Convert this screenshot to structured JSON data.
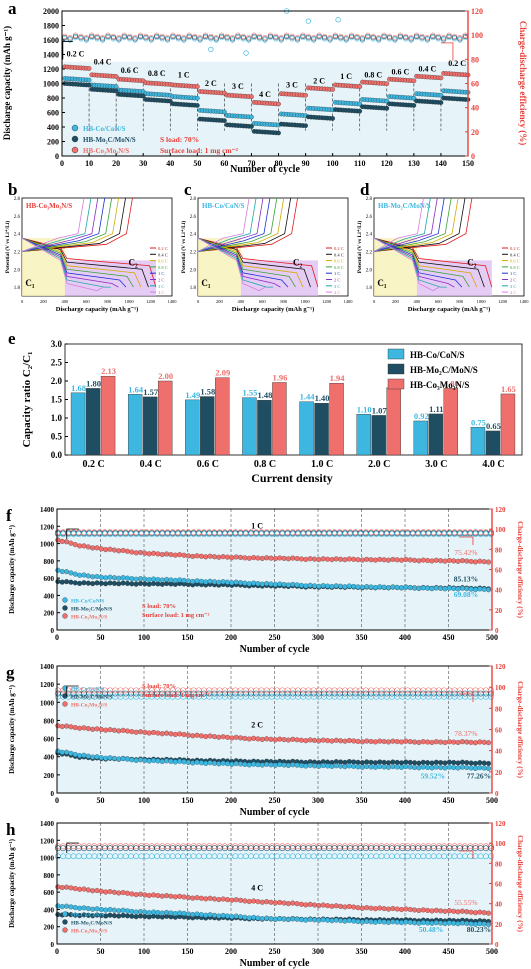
{
  "colors": {
    "co": "#3db7e0",
    "mo": "#1f4e63",
    "co3": "#ef6f6c",
    "right_axis": "#e8403a",
    "bg_light": "#e3f3f8"
  },
  "panel_a": {
    "label": "a",
    "xlabel": "Number of cycle",
    "ylabel_left": "Discharge capacity (mAh g⁻¹)",
    "ylabel_right": "Charge-discharge efficiency (%)",
    "legend": [
      "HB-Co/CoN/S",
      "HB-Mo₂C/MoN/S",
      "HB-Co₃Mo₃N/S"
    ],
    "notes": [
      "S load: 70%",
      "Surface load: 1 mg cm⁻²"
    ],
    "rates": [
      "0.2 C",
      "0.4 C",
      "0.6 C",
      "0.8 C",
      "1 C",
      "2 C",
      "3 C",
      "4 C",
      "3 C",
      "2 C",
      "1 C",
      "0.8 C",
      "0.6 C",
      "0.4 C",
      "0.2 C"
    ],
    "xticks": [
      0,
      10,
      20,
      30,
      40,
      50,
      60,
      70,
      80,
      90,
      100,
      110,
      120,
      130,
      140,
      150
    ],
    "yticks_left": [
      0,
      200,
      400,
      600,
      800,
      1000,
      1200,
      1400,
      1600,
      1800,
      2000
    ],
    "yticks_right": [
      0,
      20,
      40,
      60,
      80,
      100,
      120
    ]
  },
  "panels_bcd": [
    {
      "label": "b",
      "title": "HB-Co₃Mo₃N/S"
    },
    {
      "label": "c",
      "title": "HB-Co/CoN/S"
    },
    {
      "label": "d",
      "title": "HB-Mo₂C/MoN/S"
    }
  ],
  "bcd_common": {
    "xlabel": "Discharge capacity (mAh g⁻¹)",
    "ylabel": "Potential (V vs Li⁺/Li)",
    "c1": "C₁",
    "c2": "C₂",
    "rates": [
      "0.2 C",
      "0.4 C",
      "0.6 C",
      "0.8 C",
      "1 C",
      "2 C",
      "3 C",
      "4 C"
    ],
    "xticks": [
      0,
      200,
      400,
      600,
      800,
      1000,
      1200,
      1400
    ],
    "yticks": [
      1.8,
      2.0,
      2.2,
      2.4,
      2.6,
      2.8
    ]
  },
  "panel_e": {
    "label": "e",
    "xlabel": "Current density",
    "ylabel": "Capacity ratio C₂/C₁",
    "yticks": [
      0.0,
      0.5,
      1.0,
      1.5,
      2.0,
      2.5,
      3.0
    ]
  },
  "panels_fgh": [
    {
      "label": "f",
      "rate": "1 C",
      "pct": [
        "75.42%",
        "85.13%",
        "69.08%"
      ],
      "legend_pos": "bottom-left",
      "notes_pos": "bottom-mid"
    },
    {
      "label": "g",
      "rate": "2 C",
      "pct": [
        "78.37%",
        "77.26%",
        "59.52%"
      ],
      "legend_pos": "top-left",
      "notes_pos": "top-mid"
    },
    {
      "label": "h",
      "rate": "4 C",
      "pct": [
        "55.55%",
        "80.23%",
        "50.48%"
      ],
      "legend_pos": "bottom-left",
      "notes_pos": "none"
    }
  ],
  "fgh_common": {
    "xlabel": "Number of cycle",
    "ylabel_left": "Discharge capacity (mAh g⁻¹)",
    "ylabel_right": "Charge-discharge efficiency (%)",
    "xticks": [
      0,
      50,
      100,
      150,
      200,
      250,
      300,
      350,
      400,
      450,
      500
    ],
    "yticks_left": [
      0,
      200,
      400,
      600,
      800,
      1000,
      1200,
      1400
    ],
    "yticks_right": [
      0,
      20,
      40,
      60,
      80,
      100,
      120
    ]
  },
  "chart_data": [
    {
      "type": "scatter",
      "title": "",
      "xlabel": "Number of cycle",
      "ylabel": "Discharge capacity (mAh g⁻¹)",
      "ylabel_right": "Charge-discharge efficiency (%)",
      "xlim": [
        0,
        150
      ],
      "ylim": [
        0,
        2000
      ],
      "ylim_right": [
        0,
        120
      ],
      "rate_steps": [
        "0.2 C",
        "0.4 C",
        "0.6 C",
        "0.8 C",
        "1 C",
        "2 C",
        "3 C",
        "4 C",
        "3 C",
        "2 C",
        "1 C",
        "0.8 C",
        "0.6 C",
        "0.4 C",
        "0.2 C"
      ],
      "series": [
        {
          "name": "HB-Co₃Mo₃N/S",
          "x": [
            5,
            15,
            25,
            35,
            45,
            55,
            65,
            75,
            85,
            95,
            105,
            115,
            125,
            135,
            145
          ],
          "values": [
            1210,
            1100,
            1040,
            990,
            960,
            870,
            820,
            720,
            840,
            920,
            960,
            1000,
            1040,
            1080,
            1120
          ],
          "efficiency": 98
        },
        {
          "name": "HB-Co/CoN/S",
          "x": [
            5,
            15,
            25,
            35,
            45,
            55,
            65,
            75,
            85,
            95,
            105,
            115,
            125,
            135,
            145
          ],
          "values": [
            1050,
            960,
            890,
            840,
            800,
            610,
            540,
            430,
            560,
            640,
            720,
            760,
            800,
            840,
            880
          ],
          "efficiency": 96
        },
        {
          "name": "HB-Mo₂C/MoN/S",
          "x": [
            5,
            15,
            25,
            35,
            45,
            55,
            65,
            75,
            85,
            95,
            105,
            115,
            125,
            135,
            145
          ],
          "values": [
            980,
            900,
            830,
            760,
            700,
            490,
            410,
            320,
            420,
            520,
            620,
            660,
            700,
            740,
            780
          ],
          "efficiency": 97
        }
      ]
    },
    {
      "type": "bar",
      "title": "",
      "xlabel": "Current density",
      "ylabel": "Capacity ratio C₂/C₁",
      "ylim": [
        0,
        3.0
      ],
      "categories": [
        "0.2 C",
        "0.4 C",
        "0.6 C",
        "0.8 C",
        "1.0 C",
        "2.0 C",
        "3.0 C",
        "4.0 C"
      ],
      "series": [
        {
          "name": "HB-Co/CoN/S",
          "values": [
            1.68,
            1.64,
            1.49,
            1.55,
            1.44,
            1.1,
            0.92,
            0.75
          ],
          "labels": [
            "1.68",
            "1.64",
            "1.49",
            "1.55",
            "1.44",
            "1.10",
            "0.92",
            "0.75"
          ]
        },
        {
          "name": "HB-Mo₂C/MoN/S",
          "values": [
            1.8,
            1.57,
            1.58,
            1.48,
            1.4,
            1.07,
            1.11,
            0.65
          ],
          "labels": [
            "1.80",
            "1.57",
            "1.58",
            "1.48",
            "1.40",
            "1.07",
            "1.11",
            "0.65"
          ]
        },
        {
          "name": "HB-Co₃Mo₃N/S",
          "values": [
            2.13,
            2.0,
            2.09,
            1.96,
            1.94,
            1.82,
            1.8,
            1.65
          ],
          "labels": [
            "2.13",
            "2.00",
            "2.09",
            "1.96",
            "1.94",
            "1.82",
            "1.80",
            "1.65"
          ]
        }
      ]
    },
    {
      "type": "scatter",
      "title": "",
      "rate": "1 C",
      "xlabel": "Number of cycle",
      "ylabel": "Discharge capacity (mAh g⁻¹)",
      "xlim": [
        0,
        500
      ],
      "ylim": [
        0,
        1400
      ],
      "ylim_right": [
        0,
        120
      ],
      "series": [
        {
          "name": "HB-Co₃Mo₃N/S",
          "x": [
            1,
            25,
            50,
            100,
            150,
            200,
            250,
            300,
            350,
            400,
            450,
            500
          ],
          "values": [
            1040,
            980,
            940,
            890,
            860,
            840,
            830,
            820,
            815,
            810,
            800,
            790
          ],
          "retention": "75.42%",
          "efficiency": 98
        },
        {
          "name": "HB-Mo₂C/MoN/S",
          "x": [
            1,
            25,
            50,
            100,
            150,
            200,
            250,
            300,
            350,
            400,
            450,
            500
          ],
          "values": [
            560,
            545,
            540,
            535,
            530,
            520,
            510,
            500,
            495,
            490,
            485,
            480
          ],
          "retention": "85.13%",
          "efficiency": 97
        },
        {
          "name": "HB-Co/CoN/S",
          "x": [
            1,
            25,
            50,
            100,
            150,
            200,
            250,
            300,
            350,
            400,
            450,
            500
          ],
          "values": [
            690,
            640,
            610,
            590,
            570,
            550,
            530,
            510,
            500,
            490,
            480,
            470
          ],
          "retention": "69.08%",
          "efficiency": 96
        }
      ]
    },
    {
      "type": "scatter",
      "title": "",
      "rate": "2 C",
      "xlabel": "Number of cycle",
      "ylabel": "Discharge capacity (mAh g⁻¹)",
      "xlim": [
        0,
        500
      ],
      "ylim": [
        0,
        1400
      ],
      "ylim_right": [
        0,
        120
      ],
      "series": [
        {
          "name": "HB-Co₃Mo₃N/S",
          "x": [
            1,
            25,
            50,
            100,
            150,
            200,
            250,
            300,
            350,
            400,
            450,
            500
          ],
          "values": [
            740,
            720,
            700,
            670,
            640,
            610,
            590,
            580,
            570,
            565,
            560,
            560
          ],
          "retention": "78.37%",
          "efficiency": 98
        },
        {
          "name": "HB-Mo₂C/MoN/S",
          "x": [
            1,
            25,
            50,
            100,
            150,
            200,
            250,
            300,
            350,
            400,
            450,
            500
          ],
          "values": [
            440,
            400,
            380,
            370,
            360,
            350,
            345,
            340,
            340,
            335,
            335,
            330
          ],
          "retention": "77.26%",
          "efficiency": 95
        },
        {
          "name": "HB-Co/CoN/S",
          "x": [
            1,
            25,
            50,
            100,
            150,
            200,
            250,
            300,
            350,
            400,
            450,
            500
          ],
          "values": [
            460,
            420,
            390,
            360,
            340,
            320,
            310,
            300,
            290,
            285,
            280,
            275
          ],
          "retention": "59.52%",
          "efficiency": 92
        }
      ]
    },
    {
      "type": "scatter",
      "title": "",
      "rate": "4 C",
      "xlabel": "Number of cycle",
      "ylabel": "Discharge capacity (mAh g⁻¹)",
      "xlim": [
        0,
        500
      ],
      "ylim": [
        0,
        1400
      ],
      "ylim_right": [
        0,
        120
      ],
      "series": [
        {
          "name": "HB-Co₃Mo₃N/S",
          "x": [
            1,
            25,
            50,
            100,
            150,
            200,
            250,
            300,
            350,
            400,
            450,
            500
          ],
          "values": [
            660,
            640,
            610,
            570,
            540,
            510,
            480,
            450,
            420,
            400,
            380,
            360
          ],
          "retention": "55.55%",
          "efficiency": 98
        },
        {
          "name": "HB-Mo₂C/MoN/S",
          "x": [
            1,
            25,
            50,
            100,
            150,
            200,
            250,
            300,
            350,
            400,
            450,
            500
          ],
          "values": [
            340,
            335,
            330,
            320,
            310,
            300,
            290,
            285,
            280,
            275,
            270,
            265
          ],
          "retention": "80.23%",
          "efficiency": 96
        },
        {
          "name": "HB-Co/CoN/S",
          "x": [
            1,
            25,
            50,
            100,
            150,
            200,
            250,
            300,
            350,
            400,
            450,
            500
          ],
          "values": [
            440,
            420,
            400,
            370,
            350,
            320,
            290,
            280,
            260,
            250,
            240,
            230
          ],
          "retention": "50.48%",
          "efficiency": 88
        }
      ]
    }
  ]
}
